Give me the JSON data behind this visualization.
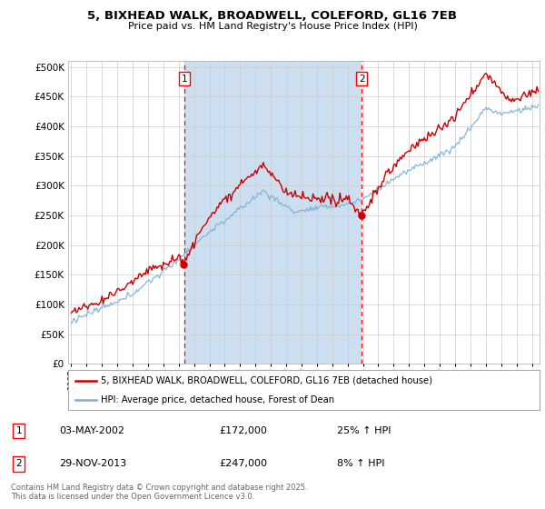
{
  "title_line1": "5, BIXHEAD WALK, BROADWELL, COLEFORD, GL16 7EB",
  "title_line2": "Price paid vs. HM Land Registry's House Price Index (HPI)",
  "legend_label_red": "5, BIXHEAD WALK, BROADWELL, COLEFORD, GL16 7EB (detached house)",
  "legend_label_blue": "HPI: Average price, detached house, Forest of Dean",
  "transaction1_date": "03-MAY-2002",
  "transaction1_price": "£172,000",
  "transaction1_hpi": "25% ↑ HPI",
  "transaction1_year": 2002.35,
  "transaction2_date": "29-NOV-2013",
  "transaction2_price": "£247,000",
  "transaction2_hpi": "8% ↑ HPI",
  "transaction2_year": 2013.92,
  "footnote": "Contains HM Land Registry data © Crown copyright and database right 2025.\nThis data is licensed under the Open Government Licence v3.0.",
  "red_color": "#cc0000",
  "blue_color": "#7bafd4",
  "fill_color": "#ccdff0",
  "grid_color": "#cccccc",
  "plot_bg": "#ffffff",
  "xmin": 1994.8,
  "xmax": 2025.5
}
